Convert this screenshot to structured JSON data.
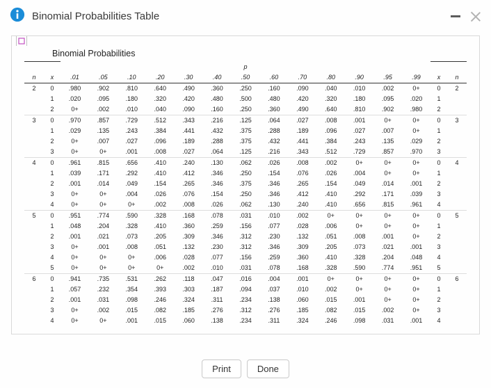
{
  "window": {
    "title": "Binomial Probabilities Table"
  },
  "caption": "Binomial Probabilities",
  "headers": {
    "p_label": "p",
    "n": "n",
    "x": "x",
    "p_values": [
      ".01",
      ".05",
      ".10",
      ".20",
      ".30",
      ".40",
      ".50",
      ".60",
      ".70",
      ".80",
      ".90",
      ".95",
      ".99"
    ]
  },
  "groups": [
    {
      "n": "2",
      "rows": [
        {
          "x": "0",
          "v": [
            ".980",
            ".902",
            ".810",
            ".640",
            ".490",
            ".360",
            ".250",
            ".160",
            ".090",
            ".040",
            ".010",
            ".002",
            "0+"
          ]
        },
        {
          "x": "1",
          "v": [
            ".020",
            ".095",
            ".180",
            ".320",
            ".420",
            ".480",
            ".500",
            ".480",
            ".420",
            ".320",
            ".180",
            ".095",
            ".020"
          ]
        },
        {
          "x": "2",
          "v": [
            "0+",
            ".002",
            ".010",
            ".040",
            ".090",
            ".160",
            ".250",
            ".360",
            ".490",
            ".640",
            ".810",
            ".902",
            ".980"
          ]
        }
      ]
    },
    {
      "n": "3",
      "rows": [
        {
          "x": "0",
          "v": [
            ".970",
            ".857",
            ".729",
            ".512",
            ".343",
            ".216",
            ".125",
            ".064",
            ".027",
            ".008",
            ".001",
            "0+",
            "0+"
          ]
        },
        {
          "x": "1",
          "v": [
            ".029",
            ".135",
            ".243",
            ".384",
            ".441",
            ".432",
            ".375",
            ".288",
            ".189",
            ".096",
            ".027",
            ".007",
            "0+"
          ]
        },
        {
          "x": "2",
          "v": [
            "0+",
            ".007",
            ".027",
            ".096",
            ".189",
            ".288",
            ".375",
            ".432",
            ".441",
            ".384",
            ".243",
            ".135",
            ".029"
          ]
        },
        {
          "x": "3",
          "v": [
            "0+",
            "0+",
            ".001",
            ".008",
            ".027",
            ".064",
            ".125",
            ".216",
            ".343",
            ".512",
            ".729",
            ".857",
            ".970"
          ]
        }
      ]
    },
    {
      "n": "4",
      "rows": [
        {
          "x": "0",
          "v": [
            ".961",
            ".815",
            ".656",
            ".410",
            ".240",
            ".130",
            ".062",
            ".026",
            ".008",
            ".002",
            "0+",
            "0+",
            "0+"
          ]
        },
        {
          "x": "1",
          "v": [
            ".039",
            ".171",
            ".292",
            ".410",
            ".412",
            ".346",
            ".250",
            ".154",
            ".076",
            ".026",
            ".004",
            "0+",
            "0+"
          ]
        },
        {
          "x": "2",
          "v": [
            ".001",
            ".014",
            ".049",
            ".154",
            ".265",
            ".346",
            ".375",
            ".346",
            ".265",
            ".154",
            ".049",
            ".014",
            ".001"
          ]
        },
        {
          "x": "3",
          "v": [
            "0+",
            "0+",
            ".004",
            ".026",
            ".076",
            ".154",
            ".250",
            ".346",
            ".412",
            ".410",
            ".292",
            ".171",
            ".039"
          ]
        },
        {
          "x": "4",
          "v": [
            "0+",
            "0+",
            "0+",
            ".002",
            ".008",
            ".026",
            ".062",
            ".130",
            ".240",
            ".410",
            ".656",
            ".815",
            ".961"
          ]
        }
      ]
    },
    {
      "n": "5",
      "rows": [
        {
          "x": "0",
          "v": [
            ".951",
            ".774",
            ".590",
            ".328",
            ".168",
            ".078",
            ".031",
            ".010",
            ".002",
            "0+",
            "0+",
            "0+",
            "0+"
          ]
        },
        {
          "x": "1",
          "v": [
            ".048",
            ".204",
            ".328",
            ".410",
            ".360",
            ".259",
            ".156",
            ".077",
            ".028",
            ".006",
            "0+",
            "0+",
            "0+"
          ]
        },
        {
          "x": "2",
          "v": [
            ".001",
            ".021",
            ".073",
            ".205",
            ".309",
            ".346",
            ".312",
            ".230",
            ".132",
            ".051",
            ".008",
            ".001",
            "0+"
          ]
        },
        {
          "x": "3",
          "v": [
            "0+",
            ".001",
            ".008",
            ".051",
            ".132",
            ".230",
            ".312",
            ".346",
            ".309",
            ".205",
            ".073",
            ".021",
            ".001"
          ]
        },
        {
          "x": "4",
          "v": [
            "0+",
            "0+",
            "0+",
            ".006",
            ".028",
            ".077",
            ".156",
            ".259",
            ".360",
            ".410",
            ".328",
            ".204",
            ".048"
          ]
        },
        {
          "x": "5",
          "v": [
            "0+",
            "0+",
            "0+",
            "0+",
            ".002",
            ".010",
            ".031",
            ".078",
            ".168",
            ".328",
            ".590",
            ".774",
            ".951"
          ]
        }
      ]
    },
    {
      "n": "6",
      "rows": [
        {
          "x": "0",
          "v": [
            ".941",
            ".735",
            ".531",
            ".262",
            ".118",
            ".047",
            ".016",
            ".004",
            ".001",
            "0+",
            "0+",
            "0+",
            "0+"
          ]
        },
        {
          "x": "1",
          "v": [
            ".057",
            ".232",
            ".354",
            ".393",
            ".303",
            ".187",
            ".094",
            ".037",
            ".010",
            ".002",
            "0+",
            "0+",
            "0+"
          ]
        },
        {
          "x": "2",
          "v": [
            ".001",
            ".031",
            ".098",
            ".246",
            ".324",
            ".311",
            ".234",
            ".138",
            ".060",
            ".015",
            ".001",
            "0+",
            "0+"
          ]
        },
        {
          "x": "3",
          "v": [
            "0+",
            ".002",
            ".015",
            ".082",
            ".185",
            ".276",
            ".312",
            ".276",
            ".185",
            ".082",
            ".015",
            ".002",
            "0+"
          ]
        },
        {
          "x": "4",
          "v": [
            "0+",
            "0+",
            ".001",
            ".015",
            ".060",
            ".138",
            ".234",
            ".311",
            ".324",
            ".246",
            ".098",
            ".031",
            ".001"
          ]
        }
      ]
    }
  ],
  "footer": {
    "print": "Print",
    "done": "Done"
  },
  "colors": {
    "info_icon": "#1a8cd8",
    "border": "#d9d9d9",
    "text": "#3a3a3a"
  }
}
